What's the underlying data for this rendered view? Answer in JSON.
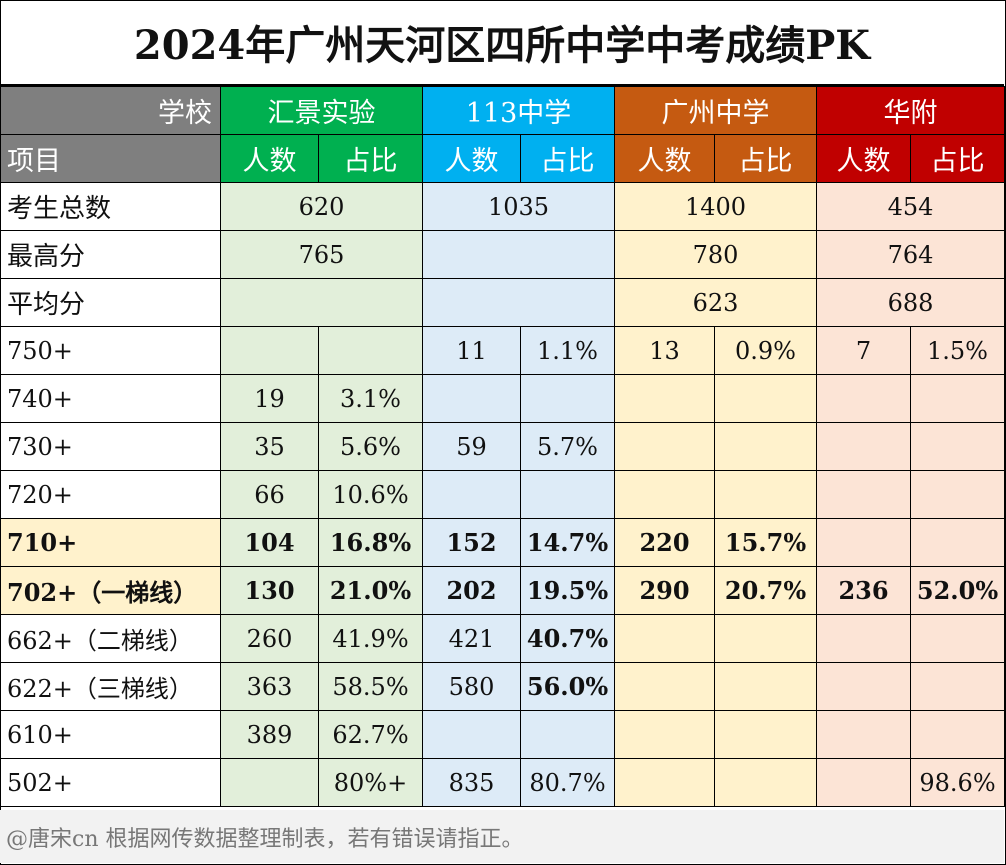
{
  "title": "2024年广州天河区四所中学中考成绩PK",
  "header": {
    "school_label": "学校",
    "item_label": "项目",
    "schools": [
      "汇景实验",
      "113中学",
      "广州中学",
      "华附"
    ],
    "count_label": "人数",
    "ratio_label": "占比"
  },
  "summary_rows": [
    {
      "label": "考生总数",
      "values": [
        "620",
        "1035",
        "1400",
        "454"
      ]
    },
    {
      "label": "最高分",
      "values": [
        "765",
        "",
        "780",
        "764"
      ]
    },
    {
      "label": "平均分",
      "values": [
        "",
        "",
        "623",
        "688"
      ]
    }
  ],
  "score_rows": [
    {
      "label": "750+",
      "cells": [
        "",
        "",
        "11",
        "1.1%",
        "13",
        "0.9%",
        "7",
        "1.5%"
      ]
    },
    {
      "label": "740+",
      "cells": [
        "19",
        "3.1%",
        "",
        "",
        "",
        "",
        "",
        ""
      ]
    },
    {
      "label": "730+",
      "cells": [
        "35",
        "5.6%",
        "59",
        "5.7%",
        "",
        "",
        "",
        ""
      ]
    },
    {
      "label": "720+",
      "cells": [
        "66",
        "10.6%",
        "",
        "",
        "",
        "",
        "",
        ""
      ]
    },
    {
      "label": "710+",
      "cells": [
        "104",
        "16.8%",
        "152",
        "14.7%",
        "220",
        "15.7%",
        "",
        ""
      ]
    },
    {
      "label": "702+（一梯线）",
      "cells": [
        "130",
        "21.0%",
        "202",
        "19.5%",
        "290",
        "20.7%",
        "236",
        "52.0%"
      ]
    },
    {
      "label": "662+（二梯线）",
      "cells": [
        "260",
        "41.9%",
        "421",
        "40.7%",
        "",
        "",
        "",
        ""
      ]
    },
    {
      "label": "622+（三梯线）",
      "cells": [
        "363",
        "58.5%",
        "580",
        "56.0%",
        "",
        "",
        "",
        ""
      ]
    },
    {
      "label": "610+",
      "cells": [
        "389",
        "62.7%",
        "",
        "",
        "",
        "",
        "",
        ""
      ]
    },
    {
      "label": "502+",
      "cells": [
        "",
        "80%+",
        "835",
        "80.7%",
        "",
        "",
        "",
        "98.6%"
      ]
    }
  ],
  "footer": "@唐宋cn 根据网传数据整理制表，若有错误请指正。",
  "colors": {
    "header_gray": "#7f7f7f",
    "huijing": "#00b050",
    "school113": "#00b0f0",
    "guangzhou": "#c55a11",
    "huafu": "#c00000"
  }
}
